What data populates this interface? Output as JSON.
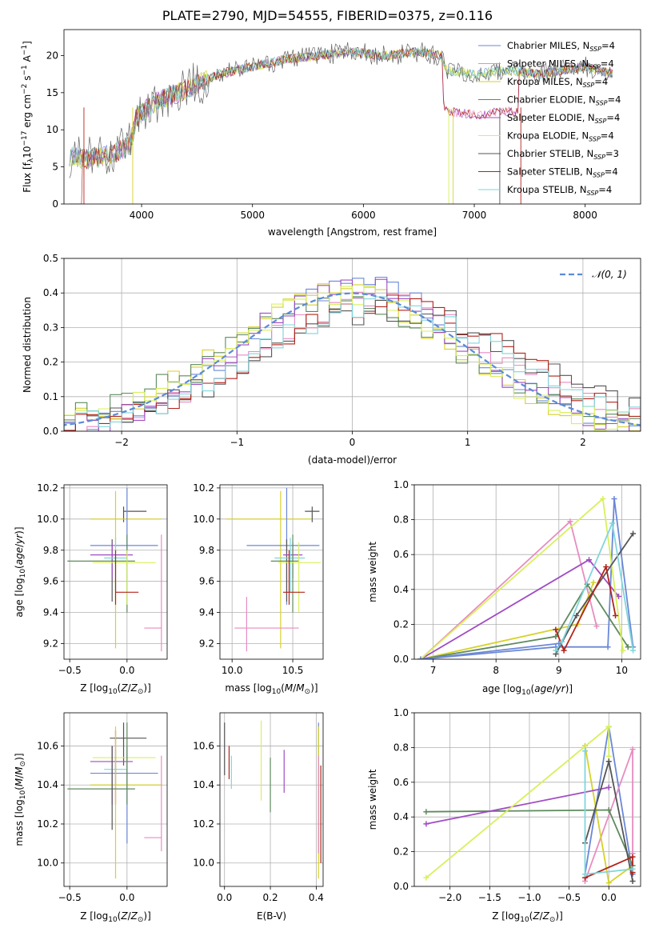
{
  "title": "PLATE=2790, MJD=54555, FIBERID=0375, z=0.116",
  "colors": {
    "miles_chabrier": "#6b88d8",
    "miles_salpeter": "#e88cbf",
    "miles_kroupa": "#d6d22a",
    "elodie_chabrier": "#5e8a5e",
    "elodie_salpeter": "#a04cc4",
    "elodie_kroupa": "#d8f05c",
    "stelib_chabrier": "#555555",
    "stelib_salpeter": "#b0241c",
    "stelib_kroupa": "#7fd6dc",
    "gaussian": "#5b8bd6",
    "grid": "#b0b0b0"
  },
  "chart_data": [
    {
      "id": "spectrum",
      "type": "line",
      "xlabel": "wavelength [Angstrom, rest frame]",
      "ylabel": "Flux [f",
      "xlim": [
        3300,
        8500
      ],
      "ylim": [
        0,
        23.5
      ],
      "xticks": [
        "4000",
        "5000",
        "6000",
        "7000",
        "8000"
      ],
      "yticks": [
        "0",
        "5",
        "10",
        "15",
        "20"
      ],
      "legend_position": "top-right",
      "legend": [
        {
          "pre": "Chabrier MILES, N",
          "sub": "SSP",
          "post": "=4"
        },
        {
          "pre": "Salpeter MILES, N",
          "sub": "SSP",
          "post": "=4"
        },
        {
          "pre": "Kroupa MILES, N",
          "sub": "SSP",
          "post": "=4"
        },
        {
          "pre": "Chabrier ELODIE, N",
          "sub": "SSP",
          "post": "=4"
        },
        {
          "pre": "Salpeter ELODIE, N",
          "sub": "SSP",
          "post": "=4"
        },
        {
          "pre": "Kroupa ELODIE, N",
          "sub": "SSP",
          "post": "=4"
        },
        {
          "pre": "Chabrier STELIB, N",
          "sub": "SSP",
          "post": "=3"
        },
        {
          "pre": "Salpeter STELIB, N",
          "sub": "SSP",
          "post": "=4"
        },
        {
          "pre": "Kroupa STELIB, N",
          "sub": "SSP",
          "post": "=4"
        }
      ],
      "continuum": {
        "x": [
          3350,
          3500,
          3700,
          3900,
          3950,
          4100,
          4400,
          4700,
          5000,
          5300,
          5600,
          5900,
          6200,
          6500,
          6700,
          6750,
          7000,
          7300,
          7600,
          8000,
          8250
        ],
        "y": [
          6.5,
          6.0,
          6.5,
          8.0,
          11.5,
          13.5,
          15.5,
          17.5,
          18.5,
          19.5,
          20.0,
          20.5,
          20.0,
          20.5,
          20.0,
          18.0,
          17.5,
          18.0,
          17.5,
          18.5,
          17.5
        ]
      }
    },
    {
      "id": "residuals",
      "type": "histogram",
      "xlabel": "(data-model)/error",
      "ylabel": "Normed distribution",
      "xlim": [
        -2.5,
        2.5
      ],
      "ylim": [
        0,
        0.5
      ],
      "xticks": [
        "−2",
        "−1",
        "0",
        "1",
        "2"
      ],
      "yticks": [
        "0.0",
        "0.1",
        "0.2",
        "0.3",
        "0.4",
        "0.5"
      ],
      "legend_position": "top-right",
      "legend_label": "N(0, 1)",
      "bin_width": 0.1
    },
    {
      "id": "age_vs_Z",
      "type": "errorbar",
      "xlabel": "Z [log10(Z/Z⊙)]",
      "ylabel": "age  [log10(age/yr)]",
      "xlim": [
        -0.55,
        0.35
      ],
      "ylim": [
        9.1,
        10.22
      ],
      "xticks": [
        "−0.5",
        "0.0"
      ],
      "yticks": [
        "9.2",
        "9.4",
        "9.6",
        "9.8",
        "10.0",
        "10.2"
      ]
    },
    {
      "id": "age_vs_mass",
      "type": "errorbar",
      "xlabel": "mass [log10(M/M⊙)]",
      "xlim": [
        9.9,
        10.75
      ],
      "ylim": [
        9.1,
        10.22
      ],
      "xticks": [
        "10.0",
        "10.5"
      ],
      "yticks": [
        "9.2",
        "9.4",
        "9.6",
        "9.8",
        "10.0",
        "10.2"
      ]
    },
    {
      "id": "weight_vs_age",
      "type": "line",
      "xlabel": "age  [log10(age/yr)]",
      "ylabel": "mass weight",
      "xlim": [
        6.7,
        10.3
      ],
      "ylim": [
        0,
        1
      ],
      "xticks": [
        "7",
        "8",
        "9",
        "10"
      ],
      "yticks": [
        "0.0",
        "0.2",
        "0.4",
        "0.6",
        "0.8",
        "1.0"
      ],
      "series": [
        {
          "color_key": "miles_chabrier",
          "x": [
            6.8,
            8.95,
            9.78,
            9.88,
            10.18
          ],
          "y": [
            0.0,
            0.07,
            0.07,
            0.92,
            0.07
          ]
        },
        {
          "color_key": "miles_salpeter",
          "x": [
            6.8,
            9.18,
            9.6
          ],
          "y": [
            0.0,
            0.79,
            0.19
          ]
        },
        {
          "color_key": "miles_kroupa",
          "x": [
            6.8,
            9.3,
            9.55
          ],
          "y": [
            0.0,
            0.2,
            0.44
          ]
        },
        {
          "color_key": "elodie_chabrier",
          "x": [
            6.8,
            8.95,
            9.45,
            10.1
          ],
          "y": [
            0.0,
            0.13,
            0.43,
            0.07
          ]
        },
        {
          "color_key": "elodie_salpeter",
          "x": [
            6.8,
            9.48,
            9.95
          ],
          "y": [
            0.0,
            0.57,
            0.36
          ]
        },
        {
          "color_key": "elodie_kroupa",
          "x": [
            6.8,
            9.7,
            10.02
          ],
          "y": [
            0.0,
            0.92,
            0.05
          ]
        },
        {
          "color_key": "stelib_chabrier",
          "x": [
            8.95,
            9.28,
            10.18
          ],
          "y": [
            0.03,
            0.25,
            0.72
          ]
        },
        {
          "color_key": "stelib_salpeter",
          "x": [
            8.95,
            9.08,
            9.75,
            9.9
          ],
          "y": [
            0.17,
            0.05,
            0.53,
            0.25
          ]
        },
        {
          "color_key": "stelib_kroupa",
          "x": [
            8.95,
            9.05,
            9.85,
            10.18
          ],
          "y": [
            0.05,
            0.1,
            0.78,
            0.05
          ]
        }
      ],
      "series_extra": [
        {
          "color_key": "miles_chabrier",
          "x": [
            6.8,
            9.0
          ],
          "y": [
            0.0,
            0.09
          ]
        }
      ]
    },
    {
      "id": "mass_vs_Z",
      "type": "errorbar",
      "xlabel": "Z [log10(Z/Z⊙)]",
      "ylabel": "mass [log10(M/M⊙)]",
      "xlim": [
        -0.55,
        0.35
      ],
      "ylim": [
        9.88,
        10.77
      ],
      "xticks": [
        "−0.5",
        "0.0"
      ],
      "yticks": [
        "10.0",
        "10.2",
        "10.4",
        "10.6"
      ]
    },
    {
      "id": "mass_vs_EBV",
      "type": "errorbar",
      "xlabel": "E(B-V)",
      "xlim": [
        -0.02,
        0.43
      ],
      "ylim": [
        9.88,
        10.77
      ],
      "xticks": [
        "0.0",
        "0.2",
        "0.4"
      ],
      "yticks": [
        "10.0",
        "10.2",
        "10.4",
        "10.6"
      ]
    },
    {
      "id": "weight_vs_Z",
      "type": "line",
      "xlabel": "Z [log10(Z/Z⊙)]",
      "ylabel": "mass weight",
      "xlim": [
        -2.45,
        0.4
      ],
      "ylim": [
        0,
        1
      ],
      "xticks": [
        "−2.0",
        "−1.5",
        "−1.0",
        "−0.5",
        "0.0"
      ],
      "yticks": [
        "0.0",
        "0.2",
        "0.4",
        "0.6",
        "0.8",
        "1.0"
      ],
      "series": [
        {
          "color_key": "miles_chabrier",
          "x": [
            -0.3,
            0.0,
            0.3
          ],
          "y": [
            0.07,
            0.92,
            0.07
          ]
        },
        {
          "color_key": "miles_salpeter",
          "x": [
            -0.3,
            0.3,
            0.3
          ],
          "y": [
            0.03,
            0.79,
            0.19
          ]
        },
        {
          "color_key": "miles_kroupa",
          "x": [
            -0.3,
            0.0,
            0.3
          ],
          "y": [
            0.81,
            0.02,
            0.12
          ]
        },
        {
          "color_key": "elodie_chabrier",
          "x": [
            -2.3,
            0.0,
            0.3
          ],
          "y": [
            0.43,
            0.44,
            0.12
          ]
        },
        {
          "color_key": "elodie_salpeter",
          "x": [
            -2.3,
            0.0
          ],
          "y": [
            0.36,
            0.57
          ]
        },
        {
          "color_key": "elodie_kroupa",
          "x": [
            -2.3,
            0.0,
            0.0
          ],
          "y": [
            0.05,
            0.92,
            0.75
          ]
        },
        {
          "color_key": "stelib_chabrier",
          "x": [
            -0.3,
            0.0,
            0.3
          ],
          "y": [
            0.25,
            0.72,
            0.03
          ]
        },
        {
          "color_key": "stelib_salpeter",
          "x": [
            -0.3,
            0.3,
            0.3
          ],
          "y": [
            0.05,
            0.17,
            0.08
          ]
        },
        {
          "color_key": "stelib_kroupa",
          "x": [
            -0.3,
            -0.3,
            0.3
          ],
          "y": [
            0.78,
            0.07,
            0.1
          ]
        }
      ]
    }
  ],
  "errorbars": {
    "age_vs_Z": [
      {
        "c": "stelib_chabrier",
        "x": -0.03,
        "y": 10.05,
        "x0": -0.03,
        "x1": 0.17,
        "y0": 9.98,
        "y1": 10.08
      },
      {
        "c": "miles_kroupa",
        "x": -0.1,
        "y": 10.0,
        "x0": -0.32,
        "x1": 0.3,
        "y0": 9.17,
        "y1": 10.18
      },
      {
        "c": "miles_chabrier",
        "x": 0.0,
        "y": 9.83,
        "x0": -0.32,
        "x1": 0.27,
        "y0": 9.45,
        "y1": 10.2
      },
      {
        "c": "stelib_chabrier",
        "x": -0.13,
        "y": 9.8,
        "x0": -0.13,
        "x1": -0.13,
        "y0": 9.47,
        "y1": 9.87
      },
      {
        "c": "elodie_salpeter",
        "x": -0.13,
        "y": 9.77,
        "x0": -0.32,
        "x1": 0.05,
        "y0": 9.62,
        "y1": 9.85
      },
      {
        "c": "stelib_kroupa",
        "x": -0.1,
        "y": 9.75,
        "x0": -0.2,
        "x1": 0.0,
        "y0": 9.53,
        "y1": 9.88
      },
      {
        "c": "elodie_chabrier",
        "x": 0.0,
        "y": 9.73,
        "x0": -0.52,
        "x1": 0.07,
        "y0": 9.4,
        "y1": 9.9
      },
      {
        "c": "elodie_kroupa",
        "x": 0.0,
        "y": 9.72,
        "x0": -0.3,
        "x1": 0.25,
        "y0": 9.45,
        "y1": 9.8
      },
      {
        "c": "stelib_salpeter",
        "x": -0.1,
        "y": 9.53,
        "x0": -0.1,
        "x1": 0.1,
        "y0": 9.45,
        "y1": 9.8
      },
      {
        "c": "miles_salpeter",
        "x": 0.3,
        "y": 9.3,
        "x0": 0.15,
        "x1": 0.3,
        "y0": 9.15,
        "y1": 9.9
      }
    ],
    "age_vs_mass": [
      {
        "c": "stelib_chabrier",
        "x": 10.66,
        "y": 10.05,
        "x0": 10.6,
        "x1": 10.72,
        "y0": 9.98,
        "y1": 10.08
      },
      {
        "c": "miles_kroupa",
        "x": 10.4,
        "y": 10.0,
        "x0": 9.95,
        "x1": 10.65,
        "y0": 9.17,
        "y1": 10.18
      },
      {
        "c": "miles_chabrier",
        "x": 10.45,
        "y": 9.83,
        "x0": 10.12,
        "x1": 10.72,
        "y0": 9.45,
        "y1": 10.2
      },
      {
        "c": "stelib_chabrier",
        "x": 10.45,
        "y": 9.8,
        "x0": 10.45,
        "x1": 10.45,
        "y0": 9.47,
        "y1": 9.87
      },
      {
        "c": "elodie_salpeter",
        "x": 10.5,
        "y": 9.77,
        "x0": 10.42,
        "x1": 10.58,
        "y0": 9.62,
        "y1": 9.85
      },
      {
        "c": "stelib_kroupa",
        "x": 10.48,
        "y": 9.75,
        "x0": 10.35,
        "x1": 10.6,
        "y0": 9.53,
        "y1": 9.88
      },
      {
        "c": "elodie_chabrier",
        "x": 10.5,
        "y": 9.73,
        "x0": 10.32,
        "x1": 10.55,
        "y0": 9.4,
        "y1": 9.9
      },
      {
        "c": "elodie_kroupa",
        "x": 10.55,
        "y": 9.72,
        "x0": 10.38,
        "x1": 10.73,
        "y0": 9.4,
        "y1": 9.85
      },
      {
        "c": "stelib_salpeter",
        "x": 10.47,
        "y": 9.53,
        "x0": 10.42,
        "x1": 10.6,
        "y0": 9.45,
        "y1": 9.8
      },
      {
        "c": "miles_salpeter",
        "x": 10.12,
        "y": 9.3,
        "x0": 10.02,
        "x1": 10.55,
        "y0": 9.15,
        "y1": 9.5
      }
    ],
    "mass_vs_Z": [
      {
        "c": "stelib_chabrier",
        "x": -0.03,
        "y": 10.64,
        "x0": -0.15,
        "x1": 0.17,
        "y0": 10.5,
        "y1": 10.72
      },
      {
        "c": "elodie_kroupa",
        "x": 0.0,
        "y": 10.54,
        "x0": -0.3,
        "x1": 0.25,
        "y0": 10.42,
        "y1": 10.6
      },
      {
        "c": "elodie_salpeter",
        "x": -0.13,
        "y": 10.52,
        "x0": -0.32,
        "x1": 0.05,
        "y0": 10.3,
        "y1": 10.6
      },
      {
        "c": "stelib_kroupa",
        "x": -0.1,
        "y": 10.48,
        "x0": -0.2,
        "x1": 0.0,
        "y0": 10.4,
        "y1": 10.58
      },
      {
        "c": "miles_chabrier",
        "x": 0.0,
        "y": 10.46,
        "x0": -0.32,
        "x1": 0.27,
        "y0": 10.1,
        "y1": 10.6
      },
      {
        "c": "stelib_salpeter",
        "x": -0.1,
        "y": 10.44,
        "x0": -0.1,
        "x1": -0.1,
        "y0": 10.3,
        "y1": 10.68
      },
      {
        "c": "miles_kroupa",
        "x": -0.1,
        "y": 10.4,
        "x0": -0.32,
        "x1": 0.3,
        "y0": 9.92,
        "y1": 10.7
      },
      {
        "c": "elodie_chabrier",
        "x": 0.0,
        "y": 10.38,
        "x0": -0.52,
        "x1": 0.07,
        "y0": 10.3,
        "y1": 10.72
      },
      {
        "c": "miles_salpeter",
        "x": 0.3,
        "y": 10.13,
        "x0": 0.15,
        "x1": 0.3,
        "y0": 10.06,
        "y1": 10.55
      },
      {
        "c": "stelib_chabrier",
        "x": -0.13,
        "y": 10.4,
        "x0": -0.13,
        "x1": -0.13,
        "y0": 10.17,
        "y1": 10.6
      }
    ],
    "mass_vs_EBV": [
      {
        "c": "stelib_chabrier",
        "x": 0.0,
        "y": 10.55,
        "y0": 10.45,
        "y1": 10.72
      },
      {
        "c": "stelib_salpeter",
        "x": 0.02,
        "y": 10.5,
        "y0": 10.43,
        "y1": 10.6
      },
      {
        "c": "stelib_kroupa",
        "x": 0.03,
        "y": 10.45,
        "y0": 10.38,
        "y1": 10.55
      },
      {
        "c": "elodie_kroupa",
        "x": 0.16,
        "y": 10.5,
        "y0": 10.32,
        "y1": 10.73
      },
      {
        "c": "elodie_chabrier",
        "x": 0.2,
        "y": 10.4,
        "y0": 10.26,
        "y1": 10.54
      },
      {
        "c": "elodie_salpeter",
        "x": 0.26,
        "y": 10.45,
        "y0": 10.36,
        "y1": 10.58
      },
      {
        "c": "miles_chabrier",
        "x": 0.41,
        "y": 10.35,
        "y0": 10.05,
        "y1": 10.72
      },
      {
        "c": "miles_kroupa",
        "x": 0.41,
        "y": 10.3,
        "y0": 9.92,
        "y1": 10.7
      },
      {
        "c": "miles_salpeter",
        "x": 0.41,
        "y": 10.3,
        "y0": 10.05,
        "y1": 10.55
      },
      {
        "c": "stelib_salpeter",
        "x": 0.42,
        "y": 10.25,
        "y0": 10.0,
        "y1": 10.5
      }
    ]
  }
}
